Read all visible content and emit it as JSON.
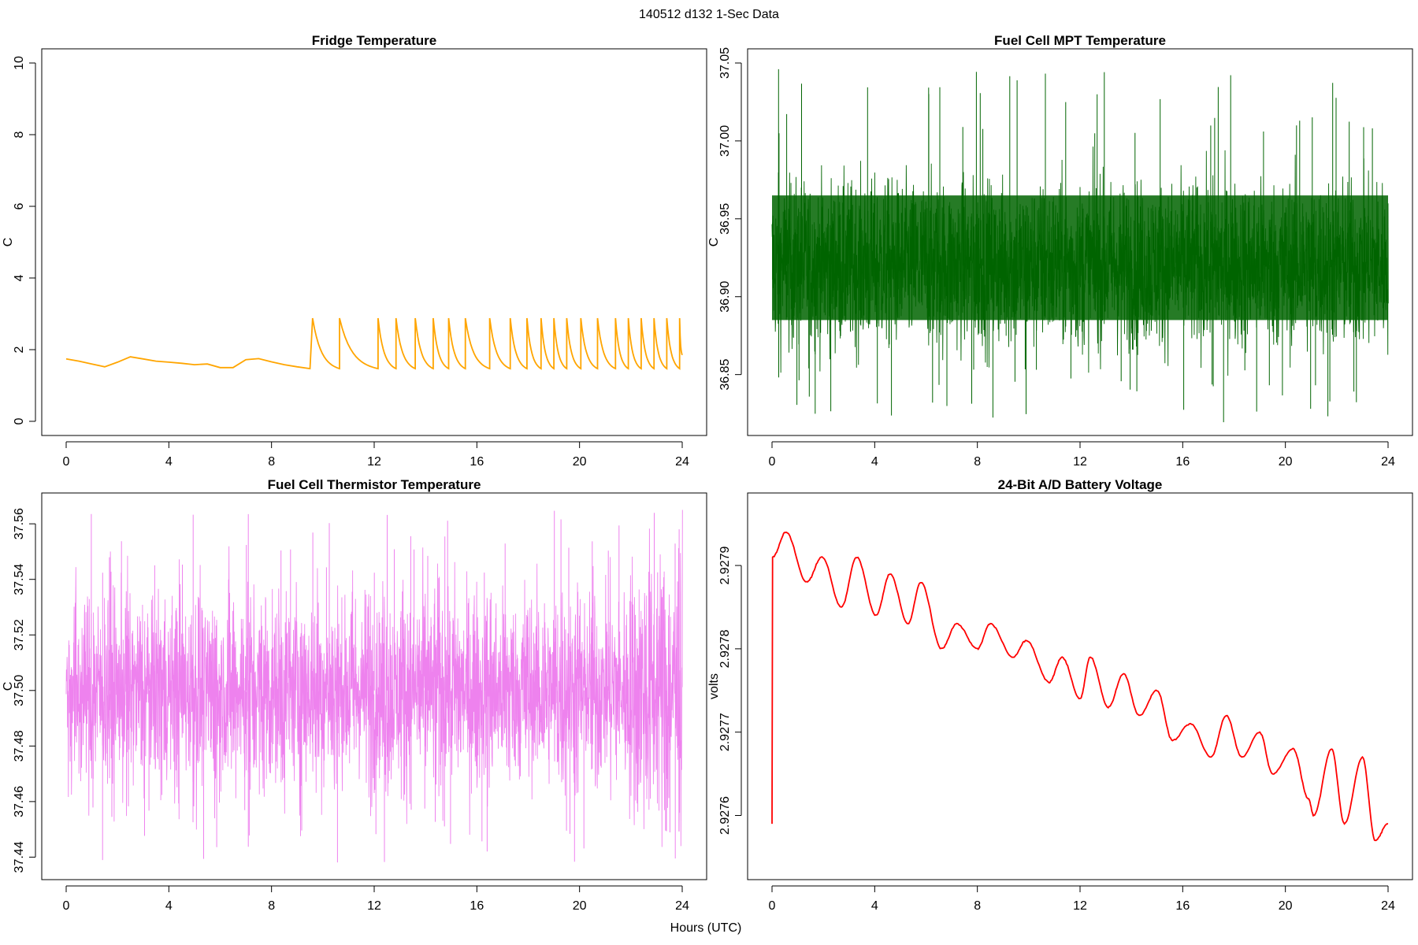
{
  "figure": {
    "suptitle": "140512   d132   1-Sec Data",
    "xlabel": "Hours (UTC)"
  },
  "chart_data": [
    {
      "type": "line",
      "title": "Fridge Temperature",
      "ylabel": "C",
      "xlabel": "",
      "xlim": [
        0,
        24
      ],
      "xticks": [
        0,
        4,
        8,
        12,
        16,
        20,
        24
      ],
      "ylim": [
        0,
        10
      ],
      "yticks": [
        0,
        2,
        4,
        6,
        8,
        10
      ],
      "ytick_labels": [
        "0",
        "2",
        "4",
        "6",
        "8",
        "10"
      ],
      "color": "#FFA500",
      "series": [
        {
          "x": [
            0,
            0.5,
            1,
            1.5,
            2,
            2.5,
            3,
            3.5,
            4,
            4.5,
            5,
            5.5,
            6,
            6.5,
            7,
            7.5,
            8,
            8.5,
            9,
            9.5
          ],
          "values": [
            1.74,
            1.68,
            1.6,
            1.52,
            1.65,
            1.8,
            1.74,
            1.68,
            1.65,
            1.62,
            1.58,
            1.6,
            1.5,
            1.5,
            1.72,
            1.75,
            1.66,
            1.58,
            1.52,
            1.47
          ]
        }
      ],
      "cycles": {
        "peak_value": 2.88,
        "trough_value": 1.47,
        "peak_times": [
          9.6,
          10.65,
          12.15,
          12.85,
          13.6,
          14.3,
          14.9,
          15.55,
          16.5,
          17.3,
          17.95,
          18.5,
          19.0,
          19.5,
          20.05,
          20.7,
          21.4,
          21.9,
          22.4,
          22.9,
          23.4,
          23.9
        ],
        "end_value": 1.85
      }
    },
    {
      "type": "line",
      "title": "Fuel Cell MPT Temperature",
      "ylabel": "C",
      "xlabel": "",
      "xlim": [
        0,
        24
      ],
      "xticks": [
        0,
        4,
        8,
        12,
        16,
        20,
        24
      ],
      "ylim": [
        36.82,
        37.05
      ],
      "yticks": [
        36.85,
        36.9,
        36.95,
        37.0,
        37.05
      ],
      "ytick_labels": [
        "36.85",
        "36.90",
        "36.95",
        "37.00",
        "37.05"
      ],
      "color": "#006400",
      "noise": {
        "center": 36.92,
        "dense_band": [
          36.885,
          36.965
        ],
        "min": 36.818,
        "max": 37.049
      }
    },
    {
      "type": "line",
      "title": "Fuel Cell Thermistor Temperature",
      "ylabel": "C",
      "xlabel": "",
      "xlim": [
        0,
        24
      ],
      "xticks": [
        0,
        4,
        8,
        12,
        16,
        20,
        24
      ],
      "ylim": [
        37.437,
        37.566
      ],
      "yticks": [
        37.44,
        37.46,
        37.48,
        37.5,
        37.52,
        37.54,
        37.56
      ],
      "ytick_labels": [
        "37.44",
        "37.46",
        "37.48",
        "37.50",
        "37.52",
        "37.54",
        "37.56"
      ],
      "color": "#EE82EE",
      "noise": {
        "center": 37.5,
        "min": 37.438,
        "max": 37.565,
        "oscillation_period_hours": 1.35
      }
    },
    {
      "type": "line",
      "title": "24-Bit A/D Battery Voltage",
      "ylabel": "volts",
      "xlabel": "",
      "xlim": [
        0,
        24
      ],
      "xticks": [
        0,
        4,
        8,
        12,
        16,
        20,
        24
      ],
      "ylim": [
        2.92754,
        2.92797
      ],
      "yticks": [
        2.9276,
        2.9277,
        2.9278,
        2.9279
      ],
      "ytick_labels": [
        "2.9276",
        "2.9277",
        "2.9278",
        "2.9279"
      ],
      "color": "#FF0000",
      "series": [
        {
          "x": [
            0,
            0.02,
            0.55,
            1.35,
            1.95,
            2.7,
            3.3,
            4.05,
            4.6,
            5.3,
            5.8,
            6.6,
            7.2,
            8.0,
            8.5,
            9.4,
            9.9,
            10.8,
            11.3,
            12.0,
            12.4,
            13.1,
            13.7,
            14.3,
            15.0,
            15.6,
            16.3,
            17.1,
            17.7,
            18.3,
            19.0,
            19.5,
            20.3,
            20.9,
            21.1,
            21.8,
            22.3,
            23.0,
            23.5,
            24.0
          ],
          "values": [
            2.92759,
            2.92791,
            2.92794,
            2.92788,
            2.92791,
            2.92785,
            2.92791,
            2.92784,
            2.92789,
            2.92783,
            2.92788,
            2.9278,
            2.92783,
            2.9278,
            2.92783,
            2.92779,
            2.92781,
            2.92776,
            2.92779,
            2.92774,
            2.92779,
            2.92773,
            2.92777,
            2.92772,
            2.92775,
            2.92769,
            2.92771,
            2.92767,
            2.92772,
            2.92767,
            2.9277,
            2.92765,
            2.92768,
            2.92762,
            2.9276,
            2.92768,
            2.92759,
            2.92767,
            2.92757,
            2.92759
          ]
        }
      ]
    }
  ]
}
